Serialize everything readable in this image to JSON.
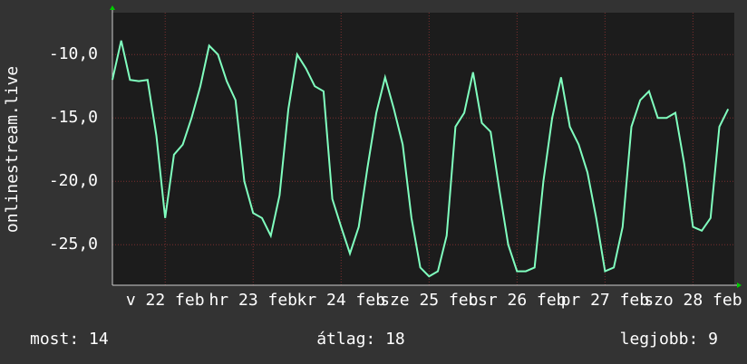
{
  "chart_data": {
    "type": "line",
    "ylabel": "onlinestream.live",
    "x": [
      21.9,
      22.0,
      22.1,
      22.2,
      22.3,
      22.4,
      22.5,
      22.6,
      22.7,
      22.8,
      22.9,
      23.0,
      23.1,
      23.2,
      23.3,
      23.4,
      23.5,
      23.6,
      23.7,
      23.8,
      23.9,
      24.0,
      24.1,
      24.2,
      24.3,
      24.4,
      24.5,
      24.6,
      24.7,
      24.8,
      24.9,
      25.0,
      25.1,
      25.2,
      25.3,
      25.4,
      25.5,
      25.6,
      25.7,
      25.8,
      25.9,
      26.0,
      26.1,
      26.2,
      26.3,
      26.4,
      26.5,
      26.6,
      26.7,
      26.8,
      26.9,
      27.0,
      27.1,
      27.2,
      27.3,
      27.4,
      27.5,
      27.6,
      27.7,
      27.8,
      27.9,
      28.0,
      28.1,
      28.2,
      28.3,
      28.4,
      28.5,
      28.6,
      28.7,
      28.8,
      28.9
    ],
    "series": [
      {
        "color": "#80ffbf",
        "values": [
          -12.0,
          -8.9,
          -12.0,
          -12.1,
          -12.0,
          -16.4,
          -22.9,
          -17.9,
          -17.1,
          -15.0,
          -12.5,
          -9.3,
          -10.0,
          -12.1,
          -13.6,
          -20.0,
          -22.5,
          -22.9,
          -24.3,
          -21.1,
          -14.3,
          -10.0,
          -11.1,
          -12.5,
          -12.9,
          -21.4,
          -23.6,
          -25.7,
          -23.6,
          -18.9,
          -14.6,
          -11.8,
          -14.3,
          -17.1,
          -22.9,
          -26.8,
          -27.5,
          -27.1,
          -24.3,
          -15.7,
          -14.6,
          -11.4,
          -15.4,
          -16.1,
          -20.7,
          -25.0,
          -27.1,
          -27.1,
          -26.8,
          -20.0,
          -15.0,
          -11.8,
          -15.7,
          -17.1,
          -19.3,
          -22.9,
          -27.1,
          -26.8,
          -23.6,
          -15.7,
          -13.6,
          -12.9,
          -15.0,
          -15.0,
          -14.6,
          -18.6,
          -23.6,
          -23.9,
          -22.9,
          -15.7,
          -14.3
        ]
      }
    ],
    "xlim": [
      21.9,
      28.97
    ],
    "xticks": [
      {
        "value": 22.5,
        "label": "v 22 feb"
      },
      {
        "value": 23.5,
        "label": "hr 23 feb"
      },
      {
        "value": 24.5,
        "label": "kr 24 feb"
      },
      {
        "value": 25.5,
        "label": "sze 25 feb"
      },
      {
        "value": 26.5,
        "label": "csr 26 feb"
      },
      {
        "value": 27.5,
        "label": "pr 27 feb"
      },
      {
        "value": 28.5,
        "label": "szo 28 feb"
      }
    ],
    "ylim": [
      -28.2,
      -6.7
    ],
    "yticks": [
      {
        "value": -10,
        "label": "-10,0"
      },
      {
        "value": -15,
        "label": "-15,0"
      },
      {
        "value": -20,
        "label": "-20,0"
      },
      {
        "value": -25,
        "label": "-25,0"
      }
    ],
    "grid": true,
    "footer": [
      "most: 14",
      "átlag: 18",
      "legjobb: 9"
    ]
  }
}
